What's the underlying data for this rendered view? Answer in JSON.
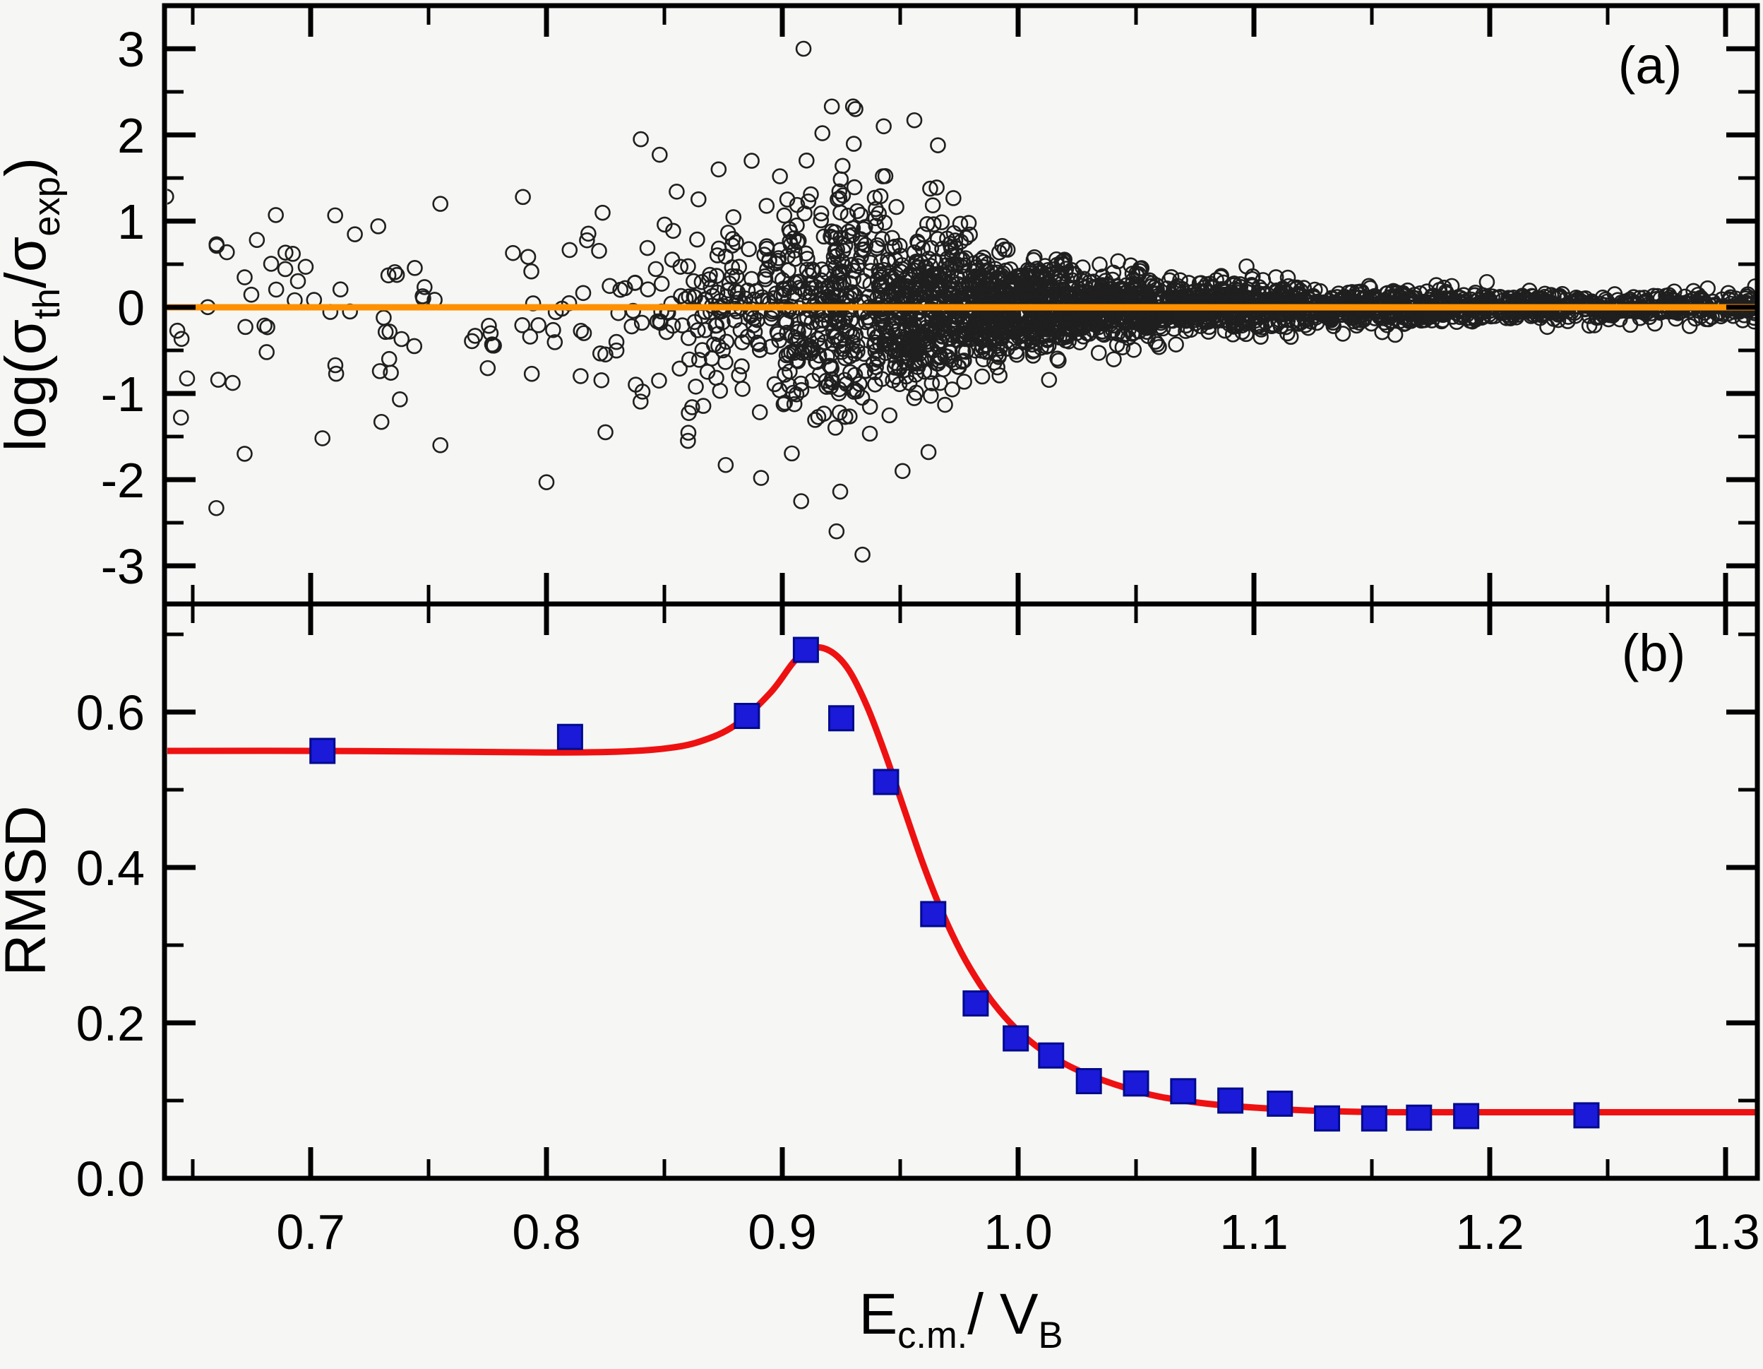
{
  "figure": {
    "background": "#f6f6f4",
    "axis_color": "#000000",
    "panel_a_label": "(a)",
    "panel_b_label": "(b)"
  },
  "panels": {
    "a": {
      "label": "(a)"
    },
    "b": {
      "label": "(b)",
      "ylabel": "RMSD"
    }
  },
  "chart_data": [
    {
      "panel": "a",
      "type": "scatter",
      "marker": "open-circle",
      "marker_edge_color": "#1f1f1f",
      "xlim": [
        0.638,
        1.3135
      ],
      "ylim": [
        -3.44,
        3.5
      ],
      "grid": false,
      "ylabel_parts": [
        {
          "t": "log("
        },
        {
          "t": "σ"
        },
        {
          "t": "th",
          "sub": 1
        },
        {
          "t": "/"
        },
        {
          "t": "σ"
        },
        {
          "t": "exp",
          "sub": 1
        },
        {
          "t": ")"
        }
      ],
      "y_ticks_major": [
        {
          "v": 3,
          "label": "3"
        },
        {
          "v": 2,
          "label": "2"
        },
        {
          "v": 1,
          "label": "1"
        },
        {
          "v": 0,
          "label": "0"
        },
        {
          "v": -1,
          "label": "-1"
        },
        {
          "v": -2,
          "label": "-2"
        },
        {
          "v": -3,
          "label": "-3"
        }
      ],
      "y_ticks_minor": [
        2.5,
        1.5,
        0.5,
        -0.5,
        -1.5,
        -2.5
      ],
      "zero_line": {
        "y": 0,
        "color": "#ff9100"
      },
      "point_cloud_model": {
        "comment": "open-circle cloud of log(sigma_th/sigma_exp); spread vs x matches RMSD of panel b; deterministic seed",
        "seed": 7,
        "bins": [
          {
            "x0": 0.638,
            "x1": 0.7,
            "n": 26,
            "sigma": 0.55,
            "cap": 2.5
          },
          {
            "x0": 0.7,
            "x1": 0.76,
            "n": 26,
            "sigma": 0.5,
            "cap": 2.2
          },
          {
            "x0": 0.76,
            "x1": 0.82,
            "n": 28,
            "sigma": 0.5,
            "cap": 2.2
          },
          {
            "x0": 0.82,
            "x1": 0.86,
            "n": 42,
            "sigma": 0.52,
            "cap": 2.2
          },
          {
            "x0": 0.86,
            "x1": 0.9,
            "n": 130,
            "sigma": 0.58,
            "cap": 2.6
          },
          {
            "x0": 0.9,
            "x1": 0.94,
            "n": 300,
            "sigma": 0.66,
            "cap": 3.1
          },
          {
            "x0": 0.94,
            "x1": 0.98,
            "n": 430,
            "sigma": 0.45,
            "cap": 2.6
          },
          {
            "x0": 0.98,
            "x1": 1.02,
            "n": 470,
            "sigma": 0.28,
            "cap": 1.6
          },
          {
            "x0": 1.02,
            "x1": 1.06,
            "n": 400,
            "sigma": 0.19,
            "cap": 1.1
          },
          {
            "x0": 1.06,
            "x1": 1.12,
            "n": 460,
            "sigma": 0.135,
            "cap": 0.8
          },
          {
            "x0": 1.12,
            "x1": 1.2,
            "n": 440,
            "sigma": 0.1,
            "cap": 0.55
          },
          {
            "x0": 1.2,
            "x1": 1.3135,
            "n": 420,
            "sigma": 0.082,
            "cap": 0.45
          }
        ]
      },
      "outliers": [
        [
          0.909,
          3.0
        ],
        [
          0.921,
          2.33
        ],
        [
          0.931,
          2.3
        ],
        [
          0.917,
          2.02
        ],
        [
          0.943,
          2.1
        ],
        [
          0.956,
          2.17
        ],
        [
          0.966,
          1.88
        ],
        [
          0.84,
          1.95
        ],
        [
          0.848,
          1.77
        ],
        [
          0.873,
          1.6
        ],
        [
          0.887,
          1.7
        ],
        [
          0.899,
          1.52
        ],
        [
          0.79,
          1.28
        ],
        [
          0.755,
          1.2
        ],
        [
          0.934,
          -2.87
        ],
        [
          0.923,
          -2.6
        ],
        [
          0.908,
          -2.25
        ],
        [
          0.891,
          -1.98
        ],
        [
          0.876,
          -1.83
        ],
        [
          0.951,
          -1.9
        ],
        [
          0.962,
          -1.68
        ],
        [
          0.8,
          -2.03
        ],
        [
          0.755,
          -1.6
        ],
        [
          0.73,
          -1.33
        ],
        [
          0.705,
          -1.52
        ],
        [
          0.672,
          -1.7
        ],
        [
          0.66,
          -2.33
        ],
        [
          0.645,
          -1.28
        ],
        [
          0.825,
          -1.45
        ],
        [
          0.86,
          -1.55
        ]
      ]
    },
    {
      "panel": "b",
      "type": "scatter+line",
      "ylabel": "RMSD",
      "xlabel_parts": [
        {
          "t": "E"
        },
        {
          "t": "c.m.",
          "sub": 1
        },
        {
          "t": "/ V"
        },
        {
          "t": "B",
          "sub": 1
        }
      ],
      "xlim": [
        0.638,
        1.3135
      ],
      "ylim": [
        0,
        0.739
      ],
      "x_ticks_major": [
        {
          "v": 0.7,
          "label": "0.7"
        },
        {
          "v": 0.8,
          "label": "0.8"
        },
        {
          "v": 0.9,
          "label": "0.9"
        },
        {
          "v": 1.0,
          "label": "1.0"
        },
        {
          "v": 1.1,
          "label": "1.1"
        },
        {
          "v": 1.2,
          "label": "1.2"
        },
        {
          "v": 1.3,
          "label": "1.3"
        }
      ],
      "x_ticks_minor": [
        0.65,
        0.75,
        0.85,
        0.95,
        1.05,
        1.15,
        1.25
      ],
      "y_ticks_major": [
        {
          "v": 0.6,
          "label": "0.6"
        },
        {
          "v": 0.4,
          "label": "0.4"
        },
        {
          "v": 0.2,
          "label": "0.2"
        },
        {
          "v": 0.0,
          "label": "0.0"
        }
      ],
      "y_ticks_minor": [
        0.7,
        0.5,
        0.3,
        0.1
      ],
      "squares": {
        "color": "#1a1ad8",
        "edge": "#000a8c",
        "points": [
          [
            0.705,
            0.55
          ],
          [
            0.81,
            0.568
          ],
          [
            0.885,
            0.595
          ],
          [
            0.91,
            0.68
          ],
          [
            0.925,
            0.592
          ],
          [
            0.944,
            0.51
          ],
          [
            0.964,
            0.34
          ],
          [
            0.982,
            0.225
          ],
          [
            0.999,
            0.18
          ],
          [
            1.014,
            0.158
          ],
          [
            1.03,
            0.125
          ],
          [
            1.05,
            0.122
          ],
          [
            1.07,
            0.112
          ],
          [
            1.09,
            0.1
          ],
          [
            1.111,
            0.096
          ],
          [
            1.131,
            0.077
          ],
          [
            1.151,
            0.077
          ],
          [
            1.17,
            0.078
          ],
          [
            1.19,
            0.08
          ],
          [
            1.241,
            0.081
          ]
        ]
      },
      "fit_curve": {
        "color": "#ee1111",
        "points": [
          [
            0.638,
            0.55
          ],
          [
            0.7,
            0.55
          ],
          [
            0.76,
            0.549
          ],
          [
            0.8,
            0.548
          ],
          [
            0.83,
            0.549
          ],
          [
            0.85,
            0.553
          ],
          [
            0.865,
            0.562
          ],
          [
            0.88,
            0.583
          ],
          [
            0.895,
            0.625
          ],
          [
            0.905,
            0.665
          ],
          [
            0.912,
            0.682
          ],
          [
            0.92,
            0.679
          ],
          [
            0.928,
            0.655
          ],
          [
            0.936,
            0.607
          ],
          [
            0.944,
            0.543
          ],
          [
            0.952,
            0.472
          ],
          [
            0.96,
            0.402
          ],
          [
            0.968,
            0.341
          ],
          [
            0.976,
            0.29
          ],
          [
            0.984,
            0.249
          ],
          [
            0.992,
            0.216
          ],
          [
            1.0,
            0.19
          ],
          [
            1.01,
            0.165
          ],
          [
            1.02,
            0.147
          ],
          [
            1.03,
            0.133
          ],
          [
            1.045,
            0.117
          ],
          [
            1.06,
            0.105
          ],
          [
            1.08,
            0.096
          ],
          [
            1.1,
            0.091
          ],
          [
            1.125,
            0.087
          ],
          [
            1.16,
            0.085
          ],
          [
            1.22,
            0.085
          ],
          [
            1.3135,
            0.085
          ]
        ]
      }
    }
  ]
}
